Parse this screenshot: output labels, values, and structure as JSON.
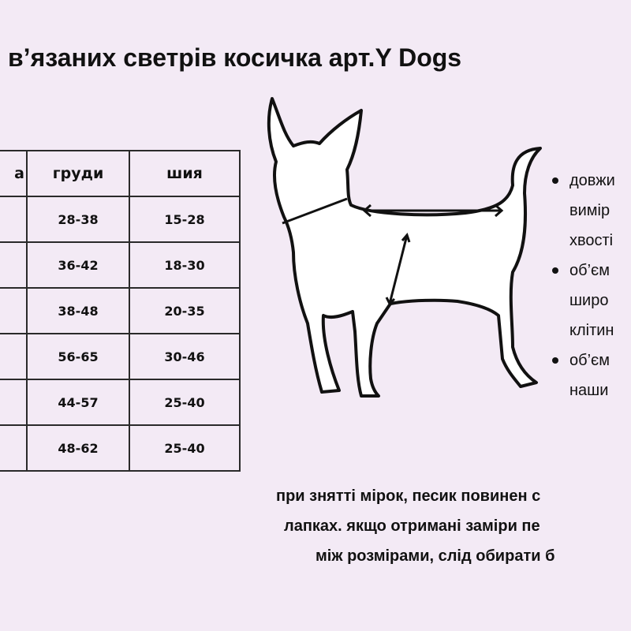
{
  "title": "в’язаних светрів косичка арт.Y Dogs",
  "table": {
    "headers": [
      "а",
      "груди",
      "шия"
    ],
    "rows": [
      [
        "",
        "28-38",
        "15-28"
      ],
      [
        "",
        "36-42",
        "18-30"
      ],
      [
        "",
        "38-48",
        "20-35"
      ],
      [
        "",
        "56-65",
        "30-46"
      ],
      [
        "",
        "44-57",
        "25-40"
      ],
      [
        "",
        "48-62",
        "25-40"
      ]
    ]
  },
  "bullets": [
    {
      "lines": [
        "довжи",
        "вимір",
        "хвості"
      ]
    },
    {
      "lines": [
        "об’єм",
        "широ",
        "клітин"
      ]
    },
    {
      "lines": [
        "об’єм",
        "наши"
      ]
    }
  ],
  "note": [
    "при знятті мірок, песик повинен с",
    "лапках. якщо отримані заміри пе",
    "між розмірами, слід обирати б"
  ]
}
